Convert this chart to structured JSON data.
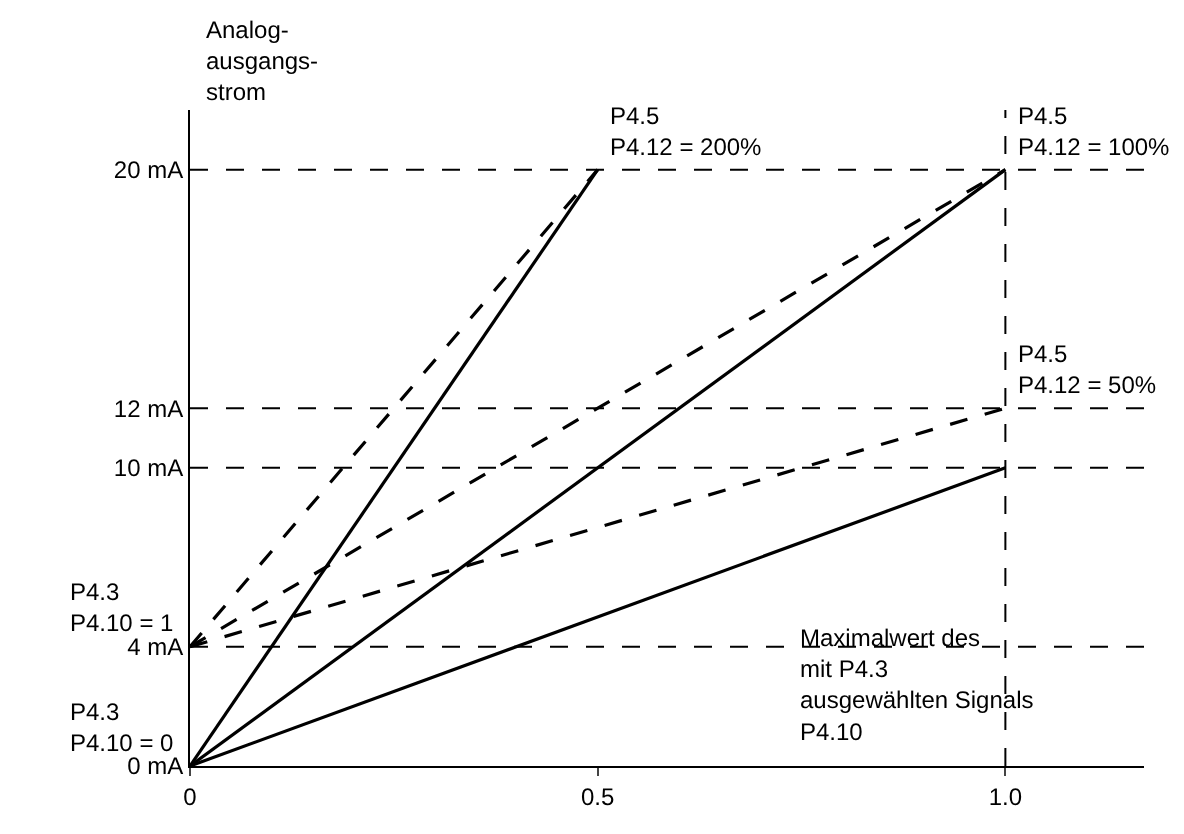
{
  "chart_data": {
    "type": "line",
    "ylabel": "Analog-\nausgangs-\nstrom",
    "xlim": [
      0,
      1.17
    ],
    "xticks": [
      0,
      0.5,
      {
        "value": 1.0,
        "label": "1.0"
      }
    ],
    "ylim": [
      0,
      22
    ],
    "yticks": [
      {
        "value": 0,
        "label": "0 mA"
      },
      {
        "value": 4,
        "label": "4 mA"
      },
      {
        "value": 10,
        "label": "10 mA"
      },
      {
        "value": 12,
        "label": "12 mA"
      },
      {
        "value": 20,
        "label": "20 mA"
      }
    ],
    "legend": false,
    "marker": "none",
    "series": [
      {
        "color": "#000000",
        "x": [
          0,
          1
        ],
        "values": [
          0,
          20
        ],
        "line_style": "solid"
      },
      {
        "color": "#000000",
        "x": [
          0,
          0.5
        ],
        "values": [
          0,
          20
        ],
        "line_style": "solid"
      },
      {
        "color": "#000000",
        "x": [
          0,
          1
        ],
        "values": [
          0,
          10
        ],
        "line_style": "solid"
      },
      {
        "color": "#000000",
        "x": [
          0,
          0.5
        ],
        "values": [
          4,
          20
        ],
        "line_style": "dashed"
      },
      {
        "color": "#000000",
        "x": [
          0,
          1
        ],
        "values": [
          4,
          20
        ],
        "line_style": "dashed"
      },
      {
        "color": "#000000",
        "x": [
          0,
          1
        ],
        "values": [
          4,
          12
        ],
        "line_style": "dashed"
      }
    ],
    "ref_lines": [
      {
        "axis": "y",
        "value": 20,
        "color": "#000000",
        "line_style": "dashed"
      },
      {
        "axis": "y",
        "value": 12,
        "color": "#000000",
        "line_style": "dashed"
      },
      {
        "axis": "y",
        "value": 10,
        "color": "#000000",
        "line_style": "dashed"
      },
      {
        "axis": "y",
        "value": 4,
        "color": "#000000",
        "line_style": "dashed"
      },
      {
        "axis": "x",
        "value": 1.0,
        "color": "#000000",
        "line_style": "dashed"
      }
    ],
    "annotations": [
      {
        "text": "P4.5\nP4.12 = 200%",
        "x": 0.5,
        "y": 20
      },
      {
        "text": "P4.5\nP4.12 = 100%",
        "x": 1.0,
        "y": 20
      },
      {
        "text": "P4.5\nP4.12 = 50%",
        "x": 1.0,
        "y": 12
      },
      {
        "text": "P4.3\nP4.10 = 1",
        "x": 0,
        "y": 4
      },
      {
        "text": "P4.3\nP4.10 = 0",
        "x": 0,
        "y": 0
      },
      "Maximalwert des\nmit P4.3\nausgewählten Signals\nP4.10"
    ]
  }
}
